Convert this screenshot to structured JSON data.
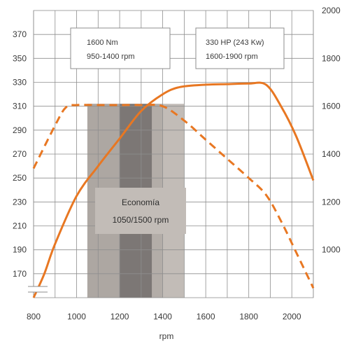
{
  "chart_data": {
    "type": "line",
    "xlabel": "rpm",
    "xlim": [
      800,
      2100
    ],
    "x_ticks": [
      "800",
      "1000",
      "1200",
      "1400",
      "1600",
      "1800",
      "2000"
    ],
    "left_axis": {
      "range": [
        150,
        390
      ],
      "ticks": [
        "170",
        "190",
        "210",
        "230",
        "250",
        "270",
        "290",
        "310",
        "330",
        "350",
        "370"
      ]
    },
    "right_axis": {
      "range": [
        800,
        2000
      ],
      "ticks": [
        "1000",
        "1200",
        "1400",
        "1600",
        "1800",
        "2000"
      ]
    },
    "grid": true,
    "series": [
      {
        "axis": "left",
        "style": "solid",
        "color": "#e87722",
        "points": [
          [
            800,
            150
          ],
          [
            850,
            170
          ],
          [
            900,
            195
          ],
          [
            1000,
            235
          ],
          [
            1100,
            260
          ],
          [
            1200,
            283
          ],
          [
            1300,
            306
          ],
          [
            1400,
            320
          ],
          [
            1480,
            326
          ],
          [
            1600,
            328
          ],
          [
            1700,
            328.5
          ],
          [
            1800,
            329
          ],
          [
            1880,
            328
          ],
          [
            1950,
            310
          ],
          [
            2020,
            285
          ],
          [
            2100,
            248
          ]
        ]
      },
      {
        "axis": "right",
        "style": "dashed",
        "color": "#e87722",
        "points": [
          [
            800,
            1340
          ],
          [
            900,
            1520
          ],
          [
            950,
            1595
          ],
          [
            1000,
            1605
          ],
          [
            1100,
            1605
          ],
          [
            1200,
            1605
          ],
          [
            1300,
            1605
          ],
          [
            1400,
            1600
          ],
          [
            1500,
            1540
          ],
          [
            1600,
            1460
          ],
          [
            1700,
            1380
          ],
          [
            1800,
            1300
          ],
          [
            1880,
            1230
          ],
          [
            1950,
            1120
          ],
          [
            2020,
            990
          ],
          [
            2100,
            840
          ]
        ]
      }
    ],
    "bands": [
      {
        "range": [
          1050,
          1500
        ],
        "color": "#c2bcb7"
      },
      {
        "range": [
          1050,
          1200
        ],
        "color": "#ada7a2"
      },
      {
        "range": [
          1200,
          1350
        ],
        "color": "#7c7775"
      },
      {
        "range": [
          1350,
          1400
        ],
        "color": "#b3ada8"
      }
    ],
    "annotations": {
      "torque_box": {
        "line1": "1600 Nm",
        "line2": "950-1400 rpm"
      },
      "power_box": {
        "line1": "330 HP (243 Kw)",
        "line2": "1600-1900 rpm"
      },
      "economy": {
        "line1": "Economía",
        "line2": "1050/1500 rpm"
      }
    }
  }
}
